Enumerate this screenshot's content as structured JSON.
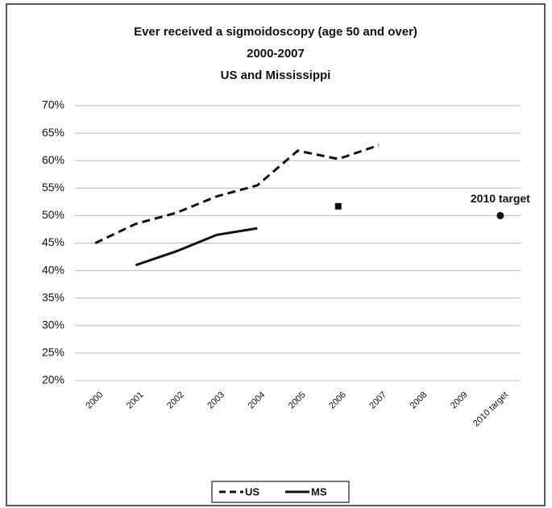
{
  "chart_data": {
    "type": "line",
    "title": [
      "Ever received a sigmoidoscopy (age 50 and over)",
      "2000-2007",
      "US and Mississippi"
    ],
    "categories": [
      "2000",
      "2001",
      "2002",
      "2003",
      "2004",
      "2005",
      "2006",
      "2007",
      "2008",
      "2009",
      "2010 target"
    ],
    "series": [
      {
        "name": "US",
        "color": "#111111",
        "dash": true,
        "values": [
          45,
          48.5,
          50.5,
          53.5,
          55.5,
          61.8,
          60.3,
          62.8,
          null,
          null,
          null
        ]
      },
      {
        "name": "MS",
        "color": "#111111",
        "dash": false,
        "values": [
          null,
          41,
          43.5,
          46.5,
          47.7,
          null,
          null,
          null,
          null,
          null,
          null
        ]
      },
      {
        "color": "#111111",
        "marker": "square",
        "values": [
          null,
          null,
          null,
          null,
          null,
          null,
          51.7,
          null,
          null,
          null,
          null
        ]
      },
      {
        "color": "#111111",
        "marker": "circle",
        "values": [
          null,
          null,
          null,
          null,
          null,
          null,
          null,
          null,
          null,
          null,
          50
        ]
      }
    ],
    "annotations": [
      {
        "text": "2010 target"
      }
    ],
    "ylim": [
      20,
      70
    ],
    "yticks": [
      {
        "value": 20,
        "label": "20%"
      },
      {
        "value": 25,
        "label": "25%"
      },
      {
        "value": 30,
        "label": "30%"
      },
      {
        "value": 35,
        "label": "35%"
      },
      {
        "value": 40,
        "label": "40%"
      },
      {
        "value": 45,
        "label": "45%"
      },
      {
        "value": 50,
        "label": "50%"
      },
      {
        "value": 55,
        "label": "55%"
      },
      {
        "value": 60,
        "label": "60%"
      },
      {
        "value": 65,
        "label": "65%"
      },
      {
        "value": 70,
        "label": "70%"
      }
    ],
    "grid": true,
    "legend": "bottom"
  }
}
